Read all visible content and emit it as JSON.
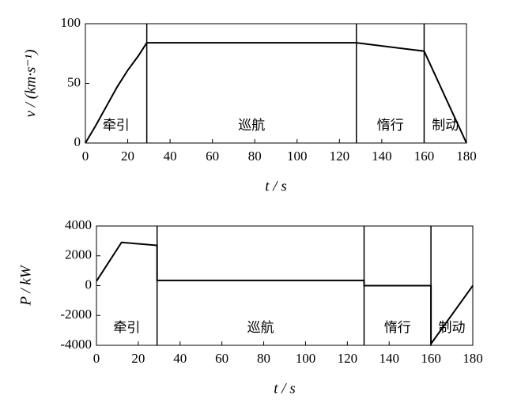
{
  "chart_data": [
    {
      "type": "line",
      "xlabel": "t / s",
      "ylabel": "v / (km·s⁻¹)",
      "x": [
        0,
        5,
        10,
        15,
        20,
        25,
        29,
        128,
        160,
        180
      ],
      "series": [
        {
          "color": "#000000",
          "values": [
            0,
            15,
            31,
            47,
            61,
            73,
            84,
            84,
            77,
            0
          ]
        }
      ],
      "xlim": [
        0,
        180
      ],
      "xticks": [
        0,
        20,
        40,
        60,
        80,
        100,
        120,
        140,
        160,
        180
      ],
      "ylim": [
        0,
        100
      ],
      "yticks": [
        0,
        50,
        100
      ],
      "boundaries": [
        29,
        128,
        160
      ],
      "annotations": [
        "牵引",
        "巡航",
        "惰行",
        "制动"
      ]
    },
    {
      "type": "line",
      "xlabel": "t / s",
      "ylabel": "P / kW",
      "x": [
        0,
        12,
        29,
        29,
        128,
        128,
        160,
        160,
        180
      ],
      "series": [
        {
          "color": "#000000",
          "values": [
            300,
            2900,
            2700,
            350,
            350,
            0,
            0,
            -3900,
            0
          ]
        }
      ],
      "xlim": [
        0,
        180
      ],
      "xticks": [
        0,
        20,
        40,
        60,
        80,
        100,
        120,
        140,
        160,
        180
      ],
      "ylim": [
        -4000,
        4000
      ],
      "yticks": [
        -4000,
        -2000,
        0,
        2000,
        4000
      ],
      "boundaries": [
        29,
        128,
        160
      ],
      "annotations": [
        "牵引",
        "巡航",
        "惰行",
        "制动"
      ]
    }
  ]
}
